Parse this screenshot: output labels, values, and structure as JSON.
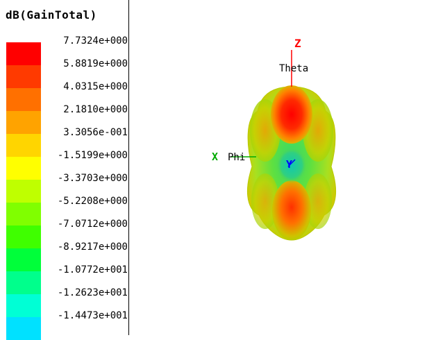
{
  "legend": {
    "title": "dB(GainTotal)",
    "entries": [
      {
        "label": "7.7324e+000",
        "color": "#ff0000"
      },
      {
        "label": "5.8819e+000",
        "color": "#ff3a00"
      },
      {
        "label": "4.0315e+000",
        "color": "#ff7000"
      },
      {
        "label": "2.1810e+000",
        "color": "#ffa300"
      },
      {
        "label": "3.3056e-001",
        "color": "#ffd500"
      },
      {
        "label": "-1.5199e+000",
        "color": "#ffff00"
      },
      {
        "label": "-3.3703e+000",
        "color": "#bfff00"
      },
      {
        "label": "-5.2208e+000",
        "color": "#80ff00"
      },
      {
        "label": "-7.0712e+000",
        "color": "#3fff00"
      },
      {
        "label": "-8.9217e+000",
        "color": "#00ff3a"
      },
      {
        "label": "-1.0772e+001",
        "color": "#00ff8c"
      },
      {
        "label": "-1.2623e+001",
        "color": "#00ffd5"
      },
      {
        "label": "-1.4473e+001",
        "color": "#00e1ff"
      }
    ]
  },
  "axes": {
    "z_label": "Z",
    "theta_label": "Theta",
    "x_label": "X",
    "phi_label": "Phi",
    "y_label": "Y",
    "colors": {
      "z": "#ff0000",
      "x": "#00aa00",
      "y": "#0000ff"
    }
  }
}
